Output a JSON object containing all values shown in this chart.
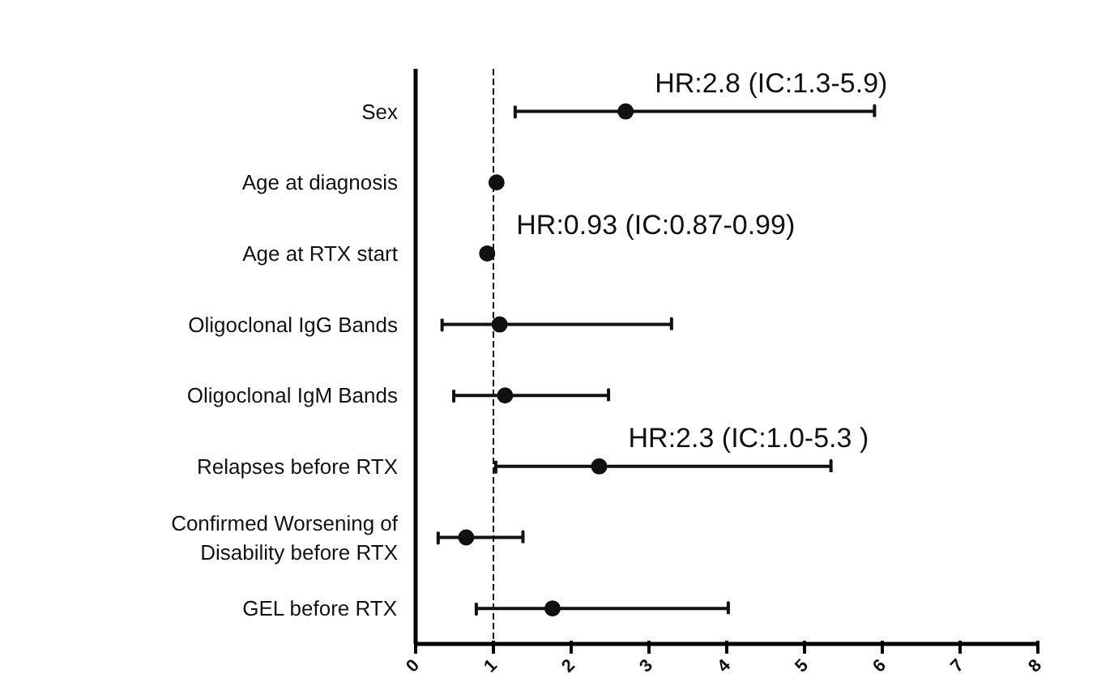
{
  "chart_data": {
    "type": "scatter",
    "categories": [
      "Sex",
      "Age at diagnosis",
      "Age at RTX start",
      "Oligoclonal IgG Bands",
      "Oligoclonal IgM Bands",
      "Relapses before RTX",
      "Confirmed Worsening of\nDisability before RTX",
      "GEL before RTX"
    ],
    "orientation": "horizontal",
    "values": [
      2.7,
      1.04,
      0.92,
      1.08,
      1.15,
      2.36,
      0.65,
      1.76
    ],
    "errors": [
      [
        1.28,
        5.9
      ],
      null,
      null,
      [
        0.34,
        3.29
      ],
      [
        0.49,
        2.48
      ],
      [
        1.03,
        5.34
      ],
      [
        0.29,
        1.38
      ],
      [
        0.78,
        4.02
      ]
    ],
    "color": "#111111",
    "marker": "circle",
    "grid": false,
    "xlim": [
      0,
      8
    ],
    "xticks": [
      0,
      1,
      2,
      3,
      4,
      5,
      6,
      7,
      8
    ],
    "ref_lines": [
      {
        "axis": "x",
        "value": 1,
        "line_style": "dashed",
        "color": "#111111"
      }
    ],
    "annotations": [
      {
        "text": "HR:2.8 (IC:1.3-5.9)",
        "x": 2.7,
        "y": "Sex"
      },
      {
        "text": "HR:0.93 (IC:0.87-0.99)",
        "x": 0.92,
        "y": "Age at RTX start"
      },
      {
        "text": "HR:2.3 (IC:1.0-5.3 )",
        "x": 2.36,
        "y": "Relapses before RTX"
      }
    ]
  }
}
